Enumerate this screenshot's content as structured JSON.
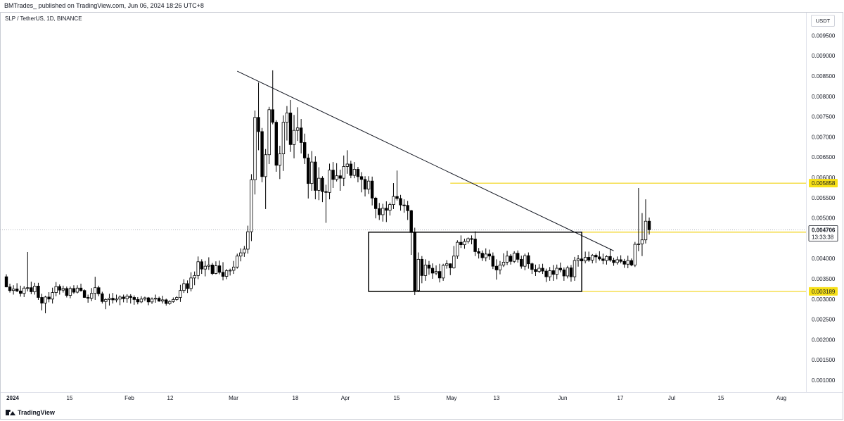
{
  "header": {
    "publish_info": "BMTrades_  published on TradingView.com, Jun 06, 2024 18:26 UTC+8",
    "symbol_title": "SLP / TetherUS, 1D, BINANCE",
    "currency_button": "USDT"
  },
  "footer": {
    "brand": "TradingView"
  },
  "chart_data": {
    "type": "candlestick",
    "symbol": "SLP / TetherUS",
    "timeframe": "1D",
    "exchange": "BINANCE",
    "x_ticks": [
      "2024",
      "15",
      "Feb",
      "12",
      "Mar",
      "18",
      "Apr",
      "15",
      "May",
      "13",
      "Jun",
      "17",
      "Jul",
      "15",
      "Aug"
    ],
    "y_ticks": [
      "0.009500",
      "0.009000",
      "0.008500",
      "0.008000",
      "0.007500",
      "0.007000",
      "0.006500",
      "0.006000",
      "0.005500",
      "0.005000",
      "0.004500",
      "0.004000",
      "0.003500",
      "0.003000",
      "0.002500",
      "0.002000",
      "0.001500",
      "0.001000"
    ],
    "ylim": [
      0.00082,
      0.01006
    ],
    "last_price": {
      "value": "0.004706",
      "countdown": "13:33:38"
    },
    "price_labels": [
      "0.005858",
      "0.004650",
      "0.003189"
    ],
    "horizontal_levels": [
      0.005858,
      0.00465,
      0.003189
    ],
    "trendline": {
      "start": [
        "Mar 6",
        0.00862
      ],
      "end": [
        "Jun 20",
        0.00419
      ]
    },
    "range_box": {
      "from": "Apr 12",
      "to": "Jun 11",
      "top": 0.00465,
      "bottom": 0.003189
    },
    "colors": {
      "up": "#ffffff",
      "down": "#000000",
      "outline": "#000000",
      "level": "#f2d313",
      "trendline": "#131722",
      "label_bg": "#f7e017"
    },
    "candles": [
      [
        0.00355,
        0.00361,
        0.00329,
        0.0033
      ],
      [
        0.0033,
        0.00338,
        0.00316,
        0.00321
      ],
      [
        0.00321,
        0.00334,
        0.00311,
        0.00325
      ],
      [
        0.00325,
        0.00339,
        0.00317,
        0.0032
      ],
      [
        0.0032,
        0.00333,
        0.00306,
        0.00314
      ],
      [
        0.00314,
        0.00332,
        0.00305,
        0.00327
      ],
      [
        0.00327,
        0.00416,
        0.00319,
        0.00328
      ],
      [
        0.00328,
        0.00343,
        0.00312,
        0.00318
      ],
      [
        0.00318,
        0.0034,
        0.00311,
        0.00332
      ],
      [
        0.00332,
        0.0034,
        0.00298,
        0.00304
      ],
      [
        0.00304,
        0.00313,
        0.00272,
        0.0029
      ],
      [
        0.0029,
        0.00308,
        0.00265,
        0.00305
      ],
      [
        0.00305,
        0.00317,
        0.00292,
        0.003
      ],
      [
        0.003,
        0.00328,
        0.00289,
        0.00316
      ],
      [
        0.00316,
        0.00342,
        0.00307,
        0.00331
      ],
      [
        0.00331,
        0.00336,
        0.00311,
        0.00322
      ],
      [
        0.00322,
        0.00333,
        0.00316,
        0.00326
      ],
      [
        0.00326,
        0.00331,
        0.00304,
        0.00309
      ],
      [
        0.00309,
        0.00331,
        0.00302,
        0.00326
      ],
      [
        0.00326,
        0.00334,
        0.00313,
        0.00317
      ],
      [
        0.00317,
        0.00334,
        0.00314,
        0.00327
      ],
      [
        0.00327,
        0.00338,
        0.00318,
        0.00321
      ],
      [
        0.00321,
        0.00324,
        0.00303,
        0.00304
      ],
      [
        0.00304,
        0.00311,
        0.00291,
        0.00302
      ],
      [
        0.00302,
        0.00327,
        0.00295,
        0.00314
      ],
      [
        0.00314,
        0.00355,
        0.00298,
        0.00328
      ],
      [
        0.00328,
        0.00333,
        0.00307,
        0.00313
      ],
      [
        0.00313,
        0.00318,
        0.00289,
        0.00294
      ],
      [
        0.00294,
        0.00302,
        0.00275,
        0.00299
      ],
      [
        0.00299,
        0.00313,
        0.00284,
        0.00302
      ],
      [
        0.00302,
        0.00315,
        0.00289,
        0.00298
      ],
      [
        0.00298,
        0.00311,
        0.00292,
        0.003
      ],
      [
        0.003,
        0.00309,
        0.00285,
        0.00305
      ],
      [
        0.00305,
        0.00311,
        0.00292,
        0.00301
      ],
      [
        0.00301,
        0.00312,
        0.00291,
        0.00307
      ],
      [
        0.00307,
        0.00312,
        0.00289,
        0.00304
      ],
      [
        0.00304,
        0.00309,
        0.00286,
        0.00299
      ],
      [
        0.00299,
        0.00305,
        0.00287,
        0.00293
      ],
      [
        0.00293,
        0.00307,
        0.0029,
        0.003
      ],
      [
        0.003,
        0.00306,
        0.00295,
        0.00303
      ],
      [
        0.00303,
        0.00305,
        0.00285,
        0.00293
      ],
      [
        0.00293,
        0.00304,
        0.00288,
        0.003
      ],
      [
        0.003,
        0.00311,
        0.00291,
        0.00302
      ],
      [
        0.00302,
        0.00306,
        0.00293,
        0.00295
      ],
      [
        0.00295,
        0.00308,
        0.00289,
        0.00298
      ],
      [
        0.00298,
        0.00301,
        0.00284,
        0.00289
      ],
      [
        0.00289,
        0.00297,
        0.00286,
        0.00294
      ],
      [
        0.00294,
        0.00304,
        0.00291,
        0.00299
      ],
      [
        0.00299,
        0.00307,
        0.00296,
        0.00304
      ],
      [
        0.00304,
        0.00335,
        0.00293,
        0.00321
      ],
      [
        0.00321,
        0.00349,
        0.00315,
        0.00338
      ],
      [
        0.00338,
        0.00346,
        0.00315,
        0.00326
      ],
      [
        0.00326,
        0.00366,
        0.00319,
        0.00352
      ],
      [
        0.00352,
        0.00368,
        0.00334,
        0.00358
      ],
      [
        0.00358,
        0.00405,
        0.00349,
        0.00392
      ],
      [
        0.00392,
        0.00398,
        0.00362,
        0.00374
      ],
      [
        0.00374,
        0.00394,
        0.00356,
        0.00381
      ],
      [
        0.00381,
        0.00403,
        0.00372,
        0.00384
      ],
      [
        0.00384,
        0.00389,
        0.00359,
        0.00363
      ],
      [
        0.00363,
        0.00393,
        0.00361,
        0.00382
      ],
      [
        0.00382,
        0.00395,
        0.00361,
        0.00366
      ],
      [
        0.00366,
        0.00391,
        0.00346,
        0.00356
      ],
      [
        0.00356,
        0.00374,
        0.00349,
        0.0037
      ],
      [
        0.0037,
        0.00375,
        0.00358,
        0.00371
      ],
      [
        0.00371,
        0.00394,
        0.00362,
        0.00379
      ],
      [
        0.00379,
        0.00412,
        0.00375,
        0.00406
      ],
      [
        0.00406,
        0.00425,
        0.00393,
        0.00414
      ],
      [
        0.00414,
        0.00431,
        0.00404,
        0.00423
      ],
      [
        0.00423,
        0.00481,
        0.00412,
        0.00466
      ],
      [
        0.00466,
        0.00608,
        0.00443,
        0.00594
      ],
      [
        0.00594,
        0.00765,
        0.00558,
        0.00748
      ],
      [
        0.00748,
        0.00834,
        0.00667,
        0.00713
      ],
      [
        0.00713,
        0.00722,
        0.00588,
        0.00602
      ],
      [
        0.00602,
        0.0067,
        0.00522,
        0.00656
      ],
      [
        0.00656,
        0.00774,
        0.00633,
        0.00767
      ],
      [
        0.00767,
        0.00864,
        0.00731,
        0.00736
      ],
      [
        0.00736,
        0.00741,
        0.00614,
        0.0063
      ],
      [
        0.0063,
        0.00678,
        0.00596,
        0.00658
      ],
      [
        0.00658,
        0.00753,
        0.00616,
        0.00736
      ],
      [
        0.00736,
        0.00776,
        0.00691,
        0.00759
      ],
      [
        0.00759,
        0.00791,
        0.00663,
        0.00681
      ],
      [
        0.00681,
        0.00754,
        0.00647,
        0.00716
      ],
      [
        0.00716,
        0.00773,
        0.0069,
        0.00722
      ],
      [
        0.00722,
        0.00744,
        0.00659,
        0.00686
      ],
      [
        0.00686,
        0.00708,
        0.00633,
        0.00648
      ],
      [
        0.00648,
        0.00658,
        0.00548,
        0.00585
      ],
      [
        0.00585,
        0.00665,
        0.00567,
        0.00638
      ],
      [
        0.00638,
        0.00652,
        0.00546,
        0.00568
      ],
      [
        0.00568,
        0.00625,
        0.00544,
        0.00598
      ],
      [
        0.00598,
        0.00603,
        0.00539,
        0.00565
      ],
      [
        0.00565,
        0.00582,
        0.00488,
        0.00563
      ],
      [
        0.00563,
        0.00634,
        0.00546,
        0.00618
      ],
      [
        0.00618,
        0.00638,
        0.00574,
        0.00595
      ],
      [
        0.00595,
        0.00635,
        0.0059,
        0.00604
      ],
      [
        0.00604,
        0.00619,
        0.00567,
        0.00598
      ],
      [
        0.00598,
        0.00654,
        0.00579,
        0.00627
      ],
      [
        0.00627,
        0.00667,
        0.00609,
        0.00633
      ],
      [
        0.00633,
        0.00641,
        0.00598,
        0.00605
      ],
      [
        0.00605,
        0.00638,
        0.00598,
        0.0062
      ],
      [
        0.0062,
        0.00626,
        0.00588,
        0.00602
      ],
      [
        0.00602,
        0.00613,
        0.00563,
        0.00595
      ],
      [
        0.00595,
        0.00603,
        0.00553,
        0.00571
      ],
      [
        0.00571,
        0.00603,
        0.00559,
        0.00591
      ],
      [
        0.00591,
        0.00602,
        0.00531,
        0.00549
      ],
      [
        0.00549,
        0.00552,
        0.00499,
        0.00523
      ],
      [
        0.00523,
        0.00537,
        0.00495,
        0.00508
      ],
      [
        0.00508,
        0.00535,
        0.00491,
        0.00524
      ],
      [
        0.00524,
        0.00541,
        0.0049,
        0.00519
      ],
      [
        0.00519,
        0.00538,
        0.00506,
        0.00533
      ],
      [
        0.00533,
        0.00586,
        0.00522,
        0.00553
      ],
      [
        0.00553,
        0.00617,
        0.00543,
        0.00548
      ],
      [
        0.00548,
        0.00557,
        0.00518,
        0.00532
      ],
      [
        0.00532,
        0.00546,
        0.00513,
        0.00531
      ],
      [
        0.00531,
        0.00542,
        0.00495,
        0.00518
      ],
      [
        0.00518,
        0.0052,
        0.00409,
        0.00464
      ],
      [
        0.00464,
        0.00476,
        0.0031,
        0.00321
      ],
      [
        0.00321,
        0.00415,
        0.00317,
        0.00398
      ],
      [
        0.00398,
        0.00406,
        0.00339,
        0.00358
      ],
      [
        0.00358,
        0.00398,
        0.00345,
        0.00384
      ],
      [
        0.00384,
        0.00394,
        0.0036,
        0.00376
      ],
      [
        0.00376,
        0.00388,
        0.0035,
        0.00364
      ],
      [
        0.00364,
        0.00383,
        0.00359,
        0.00368
      ],
      [
        0.00368,
        0.00387,
        0.00341,
        0.00352
      ],
      [
        0.00352,
        0.00387,
        0.00345,
        0.00383
      ],
      [
        0.00383,
        0.00396,
        0.00375,
        0.00387
      ],
      [
        0.00387,
        0.00388,
        0.00359,
        0.00377
      ],
      [
        0.00377,
        0.00431,
        0.00375,
        0.00406
      ],
      [
        0.00406,
        0.00445,
        0.00399,
        0.0044
      ],
      [
        0.0044,
        0.00457,
        0.00426,
        0.00434
      ],
      [
        0.00434,
        0.00449,
        0.00424,
        0.00442
      ],
      [
        0.00442,
        0.00452,
        0.00437,
        0.00449
      ],
      [
        0.00449,
        0.00457,
        0.00435,
        0.00448
      ],
      [
        0.00448,
        0.00467,
        0.00406,
        0.00417
      ],
      [
        0.00417,
        0.00426,
        0.004,
        0.00413
      ],
      [
        0.00413,
        0.0042,
        0.00394,
        0.00402
      ],
      [
        0.00402,
        0.00425,
        0.00393,
        0.00411
      ],
      [
        0.00411,
        0.00422,
        0.00397,
        0.00406
      ],
      [
        0.00406,
        0.00415,
        0.00374,
        0.00381
      ],
      [
        0.00381,
        0.00398,
        0.00348,
        0.00372
      ],
      [
        0.00372,
        0.00394,
        0.00361,
        0.00384
      ],
      [
        0.00384,
        0.00413,
        0.00379,
        0.00391
      ],
      [
        0.00391,
        0.00419,
        0.00384,
        0.00406
      ],
      [
        0.00406,
        0.00411,
        0.00385,
        0.00393
      ],
      [
        0.00393,
        0.00418,
        0.00389,
        0.00413
      ],
      [
        0.00413,
        0.0042,
        0.0039,
        0.00398
      ],
      [
        0.00398,
        0.00407,
        0.00375,
        0.00381
      ],
      [
        0.00381,
        0.00412,
        0.00371,
        0.00407
      ],
      [
        0.00407,
        0.00415,
        0.00375,
        0.00387
      ],
      [
        0.00387,
        0.0039,
        0.00362,
        0.00373
      ],
      [
        0.00373,
        0.00385,
        0.00357,
        0.00368
      ],
      [
        0.00368,
        0.00386,
        0.00364,
        0.00376
      ],
      [
        0.00376,
        0.00387,
        0.00362,
        0.00369
      ],
      [
        0.00369,
        0.00375,
        0.00342,
        0.00355
      ],
      [
        0.00355,
        0.00379,
        0.00345,
        0.0037
      ],
      [
        0.0037,
        0.00384,
        0.00345,
        0.00361
      ],
      [
        0.00361,
        0.00385,
        0.00349,
        0.00376
      ],
      [
        0.00376,
        0.0039,
        0.00366,
        0.00372
      ],
      [
        0.00372,
        0.00378,
        0.00345,
        0.00357
      ],
      [
        0.00357,
        0.00382,
        0.00351,
        0.00377
      ],
      [
        0.00377,
        0.00384,
        0.00343,
        0.00355
      ],
      [
        0.00355,
        0.00404,
        0.00345,
        0.00395
      ],
      [
        0.00395,
        0.00409,
        0.0038,
        0.00399
      ],
      [
        0.00399,
        0.00418,
        0.00386,
        0.00394
      ],
      [
        0.00394,
        0.00417,
        0.00388,
        0.00403
      ],
      [
        0.00403,
        0.00417,
        0.00392,
        0.00396
      ],
      [
        0.00396,
        0.00411,
        0.00388,
        0.00408
      ],
      [
        0.00408,
        0.00412,
        0.00389,
        0.00404
      ],
      [
        0.00404,
        0.00418,
        0.00395,
        0.00399
      ],
      [
        0.00399,
        0.00412,
        0.00386,
        0.00395
      ],
      [
        0.00395,
        0.00408,
        0.00385,
        0.00405
      ],
      [
        0.00405,
        0.00423,
        0.00392,
        0.00396
      ],
      [
        0.00396,
        0.00402,
        0.00382,
        0.0039
      ],
      [
        0.0039,
        0.00405,
        0.00385,
        0.00397
      ],
      [
        0.00397,
        0.00408,
        0.00388,
        0.00393
      ],
      [
        0.00393,
        0.00399,
        0.00377,
        0.00386
      ],
      [
        0.00386,
        0.00407,
        0.00376,
        0.00395
      ],
      [
        0.00395,
        0.004,
        0.00381,
        0.00384
      ],
      [
        0.00384,
        0.00441,
        0.00379,
        0.00435
      ],
      [
        0.00435,
        0.00574,
        0.00418,
        0.00436
      ],
      [
        0.00436,
        0.00512,
        0.00406,
        0.00446
      ],
      [
        0.00446,
        0.00546,
        0.00437,
        0.00492
      ],
      [
        0.00492,
        0.00501,
        0.00459,
        0.00471
      ]
    ]
  }
}
